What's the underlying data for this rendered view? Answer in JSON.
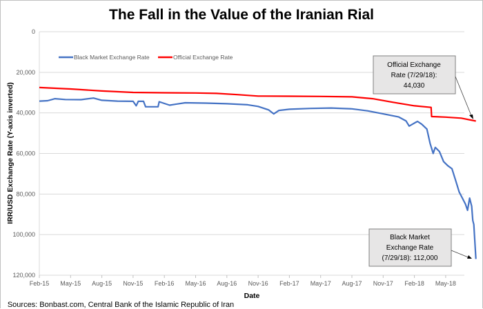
{
  "chart_data": {
    "type": "line",
    "title": "The Fall in the Value of the Iranian Rial",
    "xlabel": "Date",
    "ylabel": "IRR/USD Exchange Rate (Y-axis inverted)",
    "y_inverted": true,
    "ylim": [
      0,
      120000
    ],
    "y_ticks": [
      0,
      20000,
      40000,
      60000,
      80000,
      100000,
      120000
    ],
    "y_tick_labels": [
      "0",
      "20,000",
      "40,000",
      "60,000",
      "80,000",
      "100,000",
      "120,000"
    ],
    "x_tick_labels": [
      "Feb-15",
      "May-15",
      "Aug-15",
      "Nov-15",
      "Feb-16",
      "May-16",
      "Aug-16",
      "Nov-16",
      "Feb-17",
      "May-17",
      "Aug-17",
      "Nov-17",
      "Feb-18",
      "May-18"
    ],
    "x_range_months": [
      0,
      41.9
    ],
    "grid": "horizontal",
    "legend_position": "top-left",
    "series_note": "Intermediate points are visual estimates read from the plotted curves; only the two 7/29/18 endpoint values are printed on the chart.",
    "series": [
      {
        "name": "Black Market Exchange Rate",
        "color": "#4472c4",
        "points": [
          [
            0,
            34200
          ],
          [
            0.8,
            34000
          ],
          [
            1.5,
            33000
          ],
          [
            2.5,
            33400
          ],
          [
            4,
            33500
          ],
          [
            5.2,
            32700
          ],
          [
            6,
            33800
          ],
          [
            7.5,
            34200
          ],
          [
            9,
            34300
          ],
          [
            9.3,
            36500
          ],
          [
            9.5,
            34300
          ],
          [
            10,
            34300
          ],
          [
            10.2,
            37000
          ],
          [
            11.4,
            37000
          ],
          [
            11.5,
            34500
          ],
          [
            12.5,
            36200
          ],
          [
            13,
            35800
          ],
          [
            14,
            35000
          ],
          [
            16,
            35200
          ],
          [
            18,
            35500
          ],
          [
            20,
            36000
          ],
          [
            21,
            36800
          ],
          [
            22,
            38500
          ],
          [
            22.5,
            40500
          ],
          [
            23,
            38800
          ],
          [
            24,
            38200
          ],
          [
            26,
            37800
          ],
          [
            28,
            37600
          ],
          [
            30,
            38000
          ],
          [
            31.5,
            39000
          ],
          [
            33,
            40500
          ],
          [
            34.5,
            42000
          ],
          [
            35.2,
            44000
          ],
          [
            35.5,
            46500
          ],
          [
            36,
            45000
          ],
          [
            36.3,
            44200
          ],
          [
            36.7,
            45600
          ],
          [
            37.2,
            48000
          ],
          [
            37.5,
            55000
          ],
          [
            37.8,
            60000
          ],
          [
            38,
            57000
          ],
          [
            38.4,
            59000
          ],
          [
            38.8,
            64000
          ],
          [
            39.2,
            66000
          ],
          [
            39.6,
            67500
          ],
          [
            40,
            74000
          ],
          [
            40.3,
            79000
          ],
          [
            40.6,
            82000
          ],
          [
            40.9,
            85000
          ],
          [
            41.1,
            88000
          ],
          [
            41.3,
            82000
          ],
          [
            41.5,
            86000
          ],
          [
            41.6,
            93000
          ],
          [
            41.7,
            95000
          ],
          [
            41.9,
            112000
          ]
        ],
        "callout": {
          "lines": [
            "Black Market",
            "Exchange Rate",
            "(7/29/18): 112,000"
          ],
          "value": 112000,
          "date": "7/29/18"
        }
      },
      {
        "name": "Official Exchange Rate",
        "color": "#ff0000",
        "points": [
          [
            0,
            27500
          ],
          [
            3,
            28200
          ],
          [
            6,
            29200
          ],
          [
            9,
            29900
          ],
          [
            12,
            30100
          ],
          [
            15,
            30200
          ],
          [
            17,
            30400
          ],
          [
            19,
            31000
          ],
          [
            21,
            31700
          ],
          [
            24,
            31800
          ],
          [
            27,
            31900
          ],
          [
            30,
            32100
          ],
          [
            32,
            33000
          ],
          [
            34,
            34800
          ],
          [
            36,
            36500
          ],
          [
            37.6,
            37300
          ],
          [
            37.65,
            41800
          ],
          [
            39,
            42100
          ],
          [
            40.5,
            42600
          ],
          [
            41.9,
            44030
          ]
        ],
        "callout": {
          "lines": [
            "Official Exchange",
            "Rate (7/29/18):",
            "44,030"
          ],
          "value": 44030,
          "date": "7/29/18"
        }
      }
    ],
    "source": "Sources: Bonbast.com, Central Bank of the Islamic Republic of Iran"
  }
}
